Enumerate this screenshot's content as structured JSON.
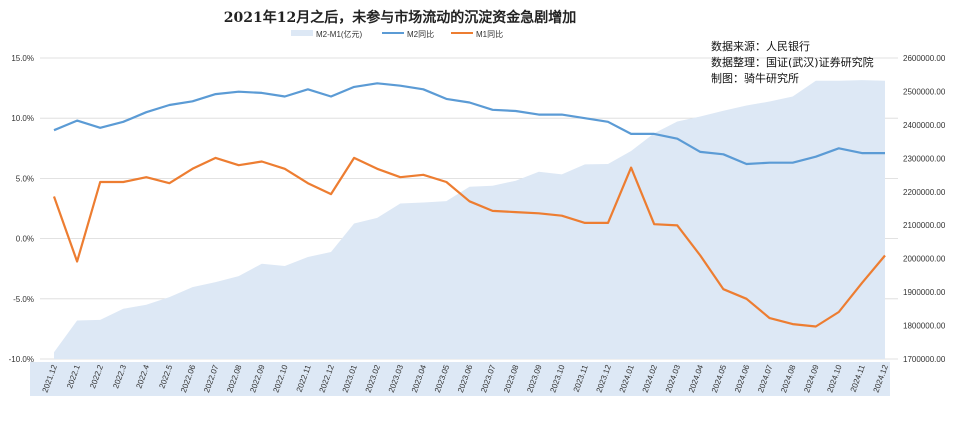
{
  "chart_data": {
    "type": "line",
    "title": "2021年12月之后，未参与市场流动的沉淀资金急剧增加",
    "legend": [
      "M2-M1(亿元)",
      "M2同比",
      "M1同比"
    ],
    "legend_position": "top-center",
    "source_lines": [
      "数据来源：人民银行",
      "数据整理：国证(武汉)证券研究院",
      "制图：骑牛研究所"
    ],
    "categories": [
      "2021.12",
      "2022.1",
      "2022.2",
      "2022.3",
      "2022.4",
      "2022.5",
      "2022.06",
      "2022.07",
      "2022.08",
      "2022.09",
      "2022.10",
      "2022.11",
      "2022.12",
      "2023.01",
      "2023.02",
      "2023.03",
      "2023.04",
      "2023.05",
      "2023.06",
      "2023.07",
      "2023.08",
      "2023.09",
      "2023.10",
      "2023.11",
      "2023.12",
      "2024.01",
      "2024.02",
      "2024.03",
      "2024.04",
      "2024.05",
      "2024.06",
      "2024.07",
      "2024.08",
      "2024.09",
      "2024.10",
      "2024.11",
      "2024.12"
    ],
    "left_axis": {
      "ticks": [
        "15.0%",
        "10.0%",
        "5.0%",
        "0.0%",
        "-5.0%",
        "-10.0%"
      ],
      "range": [
        -10,
        15
      ]
    },
    "right_axis": {
      "ticks": [
        "2600000.00",
        "2500000.00",
        "2400000.00",
        "2300000.00",
        "2200000.00",
        "2100000.00",
        "2000000.00",
        "1900000.00",
        "1800000.00",
        "1700000.00"
      ],
      "range": [
        1700000,
        2600000
      ]
    },
    "grid": "horizontal",
    "series": [
      {
        "name": "M2-M1(亿元)",
        "type": "area",
        "axis": "right",
        "color": "#dde8f5",
        "values": [
          1720000,
          1815000,
          1817000,
          1850000,
          1862000,
          1885000,
          1915000,
          1930000,
          1948000,
          1985000,
          1978000,
          2005000,
          2020000,
          2105000,
          2122000,
          2165000,
          2168000,
          2172000,
          2215000,
          2218000,
          2233000,
          2260000,
          2252000,
          2282000,
          2283000,
          2322000,
          2375000,
          2410000,
          2425000,
          2442000,
          2458000,
          2470000,
          2485000,
          2532000,
          2532000,
          2534000,
          2532000
        ]
      },
      {
        "name": "M2同比",
        "type": "line",
        "axis": "left",
        "color": "#5b9bd5",
        "values": [
          9.0,
          9.8,
          9.2,
          9.7,
          10.5,
          11.1,
          11.4,
          12.0,
          12.2,
          12.1,
          11.8,
          12.4,
          11.8,
          12.6,
          12.9,
          12.7,
          12.4,
          11.6,
          11.3,
          10.7,
          10.6,
          10.3,
          10.3,
          10.0,
          9.7,
          8.7,
          8.7,
          8.3,
          7.2,
          7.0,
          6.2,
          6.3,
          6.3,
          6.8,
          7.5,
          7.1,
          7.1
        ]
      },
      {
        "name": "M1同比",
        "type": "line",
        "axis": "left",
        "color": "#ed7d31",
        "values": [
          3.5,
          -1.9,
          4.7,
          4.7,
          5.1,
          4.6,
          5.8,
          6.7,
          6.1,
          6.4,
          5.8,
          4.6,
          3.7,
          6.7,
          5.8,
          5.1,
          5.3,
          4.7,
          3.1,
          2.3,
          2.2,
          2.1,
          1.9,
          1.3,
          1.3,
          5.9,
          1.2,
          1.1,
          -1.4,
          -4.2,
          -5.0,
          -6.6,
          -7.1,
          -7.3,
          -6.1,
          -3.7,
          -1.4
        ]
      }
    ]
  }
}
